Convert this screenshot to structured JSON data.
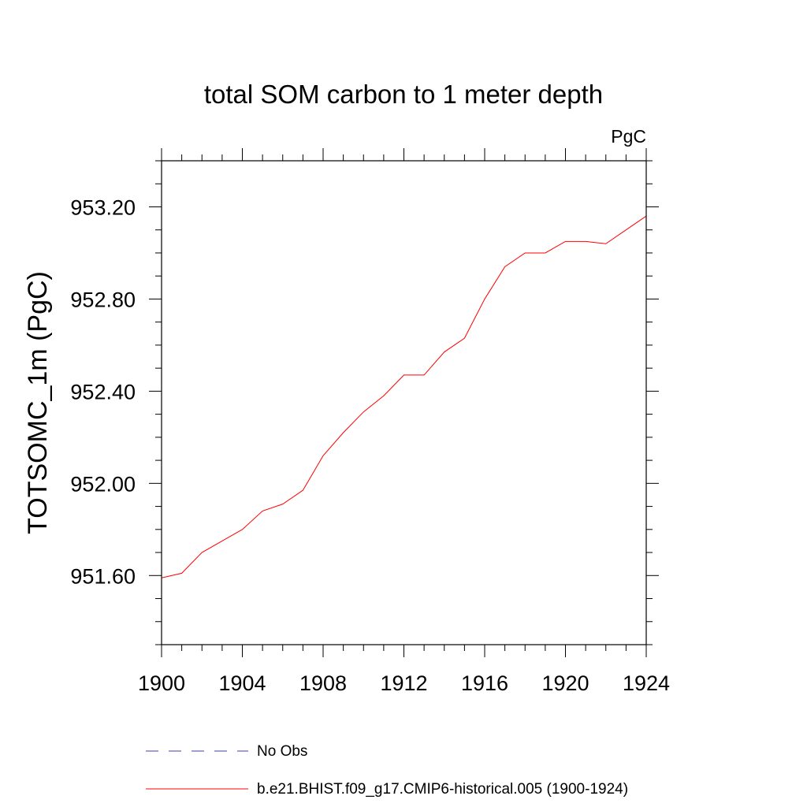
{
  "chart_data": {
    "type": "line",
    "title": "total SOM carbon to 1 meter depth",
    "units_label": "PgC",
    "ylabel": "TOTSOMC_1m  (PgC)",
    "xlabel": "",
    "xlim": [
      1900,
      1924
    ],
    "ylim": [
      951.3,
      953.4
    ],
    "x_ticks": [
      1900,
      1904,
      1908,
      1912,
      1916,
      1920,
      1924
    ],
    "x_tick_labels": [
      "1900",
      "1904",
      "1908",
      "1912",
      "1916",
      "1920",
      "1924"
    ],
    "y_ticks": [
      951.6,
      952.0,
      952.4,
      952.8,
      953.2
    ],
    "y_tick_labels": [
      "951.60",
      "952.00",
      "952.40",
      "952.80",
      "953.20"
    ],
    "grid": false,
    "legend_position": "bottom",
    "x": [
      1900,
      1901,
      1902,
      1903,
      1904,
      1905,
      1906,
      1907,
      1908,
      1909,
      1910,
      1911,
      1912,
      1913,
      1914,
      1915,
      1916,
      1917,
      1918,
      1919,
      1920,
      1921,
      1922,
      1923,
      1924
    ],
    "series": [
      {
        "name": "b.e21.BHIST.f09_g17.CMIP6-historical.005 (1900-1924)",
        "color": "#ff0000",
        "dash": "solid",
        "values": [
          951.59,
          951.61,
          951.7,
          951.75,
          951.8,
          951.88,
          951.91,
          951.97,
          952.12,
          952.22,
          952.31,
          952.38,
          952.47,
          952.47,
          952.57,
          952.63,
          952.8,
          952.94,
          953.0,
          953.0,
          953.05,
          953.05,
          953.04,
          953.1,
          953.16
        ]
      }
    ],
    "legend": [
      {
        "label": "No Obs",
        "color": "#4040a0",
        "dash": "dashed"
      },
      {
        "label": "b.e21.BHIST.f09_g17.CMIP6-historical.005 (1900-1924)",
        "color": "#ff0000",
        "dash": "solid"
      }
    ]
  }
}
